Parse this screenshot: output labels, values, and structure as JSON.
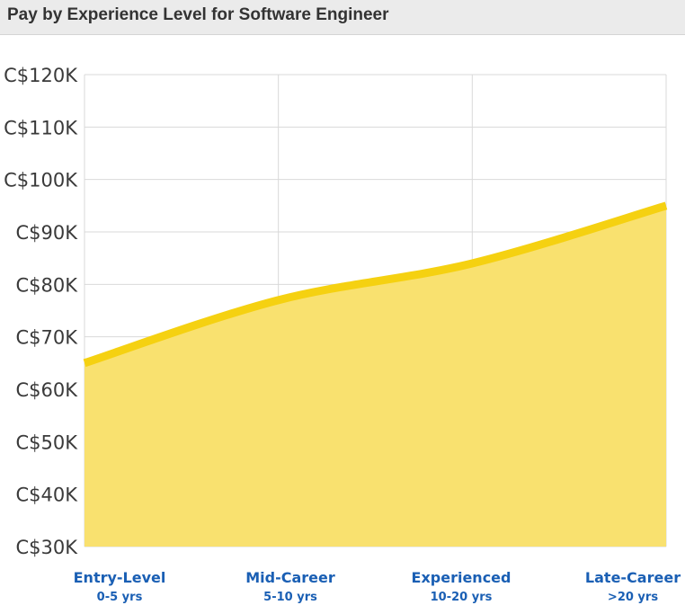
{
  "header": {
    "title": "Pay by Experience Level for Software Engineer"
  },
  "colors": {
    "line": "#f5d111",
    "fill": "#f9e16f",
    "grid": "#d9d9d9",
    "label": "#1a5fb4",
    "tick": "#3a3a3a",
    "header_bg": "#ebebeb"
  },
  "chart_data": {
    "type": "area",
    "title": "Pay by Experience Level for Software Engineer",
    "xlabel": "",
    "ylabel": "",
    "ylim": [
      30000,
      120000
    ],
    "yticks": [
      30000,
      40000,
      50000,
      60000,
      70000,
      80000,
      90000,
      100000,
      110000,
      120000
    ],
    "ytick_labels": [
      "C$30K",
      "C$40K",
      "C$50K",
      "C$60K",
      "C$70K",
      "C$80K",
      "C$90K",
      "C$100K",
      "C$110K",
      "C$120K"
    ],
    "categories": [
      "Entry-Level",
      "Mid-Career",
      "Experienced",
      "Late-Career"
    ],
    "subcategories": [
      "0-5 yrs",
      "5-10 yrs",
      "10-20 yrs",
      ">20 yrs"
    ],
    "values": [
      65000,
      77000,
      84000,
      95000
    ],
    "grid": true,
    "legend": "none"
  }
}
